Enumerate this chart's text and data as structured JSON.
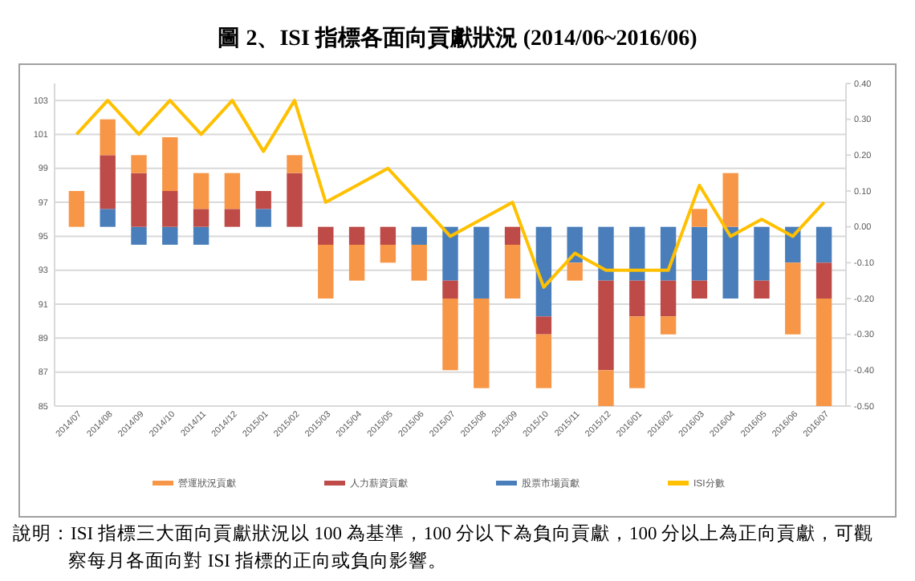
{
  "chart_data": {
    "type": "bar",
    "title": "圖 2、ISI 指標各面向貢獻狀況 (2014/06~2016/06)",
    "stacked": true,
    "categories": [
      "2014/07",
      "2014/08",
      "2014/09",
      "2014/10",
      "2014/11",
      "2014/12",
      "2015/01",
      "2015/02",
      "2015/03",
      "2015/04",
      "2015/05",
      "2015/06",
      "2015/07",
      "2015/08",
      "2015/09",
      "2015/10",
      "2015/11",
      "2015/12",
      "2016/01",
      "2016/02",
      "2016/03",
      "2016/04",
      "2016/05",
      "2016/06",
      "2016/07"
    ],
    "series": [
      {
        "name": "股票市場貢獻",
        "color": "#4a7ebb",
        "axis": "y2",
        "values": [
          0,
          0.05,
          -0.05,
          -0.05,
          -0.05,
          0,
          0.05,
          0,
          0,
          0,
          0,
          -0.05,
          -0.15,
          -0.2,
          0,
          -0.25,
          -0.1,
          -0.15,
          -0.15,
          -0.15,
          -0.15,
          -0.2,
          -0.15,
          -0.1,
          -0.1
        ]
      },
      {
        "name": "人力薪資貢獻",
        "color": "#be4b48",
        "axis": "y2",
        "values": [
          0,
          0.15,
          0.15,
          0.1,
          0.05,
          0.05,
          0.05,
          0.15,
          -0.05,
          -0.05,
          -0.05,
          0,
          -0.05,
          0,
          -0.05,
          -0.05,
          0,
          -0.25,
          -0.1,
          -0.1,
          -0.05,
          0,
          -0.05,
          0,
          -0.1
        ]
      },
      {
        "name": "營運狀況貢獻",
        "color": "#f79646",
        "axis": "y2",
        "values": [
          0.1,
          0.1,
          0.05,
          0.15,
          0.1,
          0.1,
          0,
          0.05,
          -0.15,
          -0.1,
          -0.05,
          -0.1,
          -0.2,
          -0.25,
          -0.15,
          -0.15,
          -0.05,
          -0.1,
          -0.2,
          -0.05,
          0.05,
          0.15,
          0,
          -0.2,
          -0.3
        ]
      },
      {
        "name": "ISI分數",
        "type": "line",
        "color": "#ffc000",
        "axis": "y",
        "values": [
          101,
          103,
          101,
          103,
          101,
          103,
          100,
          103,
          97,
          98,
          99,
          97,
          95,
          96,
          97,
          92,
          94,
          93,
          93,
          93,
          98,
          95,
          96,
          95,
          97
        ]
      }
    ],
    "ylim": [
      85,
      104
    ],
    "yticks": [
      85,
      87,
      89,
      91,
      93,
      95,
      97,
      99,
      101,
      103
    ],
    "y2lim": [
      -0.5,
      0.4
    ],
    "y2ticks": [
      {
        "value": -0.5,
        "label": "-0.50"
      },
      {
        "value": -0.4,
        "label": "-0.40"
      },
      {
        "value": -0.3,
        "label": "-0.30"
      },
      {
        "value": -0.2,
        "label": "-0.20"
      },
      {
        "value": -0.1,
        "label": "-0.10"
      },
      {
        "value": 0,
        "label": "0.00"
      },
      {
        "value": 0.1,
        "label": "0.10"
      },
      {
        "value": 0.2,
        "label": "0.20"
      },
      {
        "value": 0.3,
        "label": "0.30"
      },
      {
        "value": 0.4,
        "label": "0.40"
      }
    ],
    "grid": "y",
    "legend": "bottom",
    "annotations": [
      "說明：ISI 指標三大面向貢獻狀況以 100 為基準，100 分以下為負向貢獻，100 分以上為正向貢獻，可觀察每月各面向對 ISI 指標的正向或負向影響。"
    ]
  }
}
